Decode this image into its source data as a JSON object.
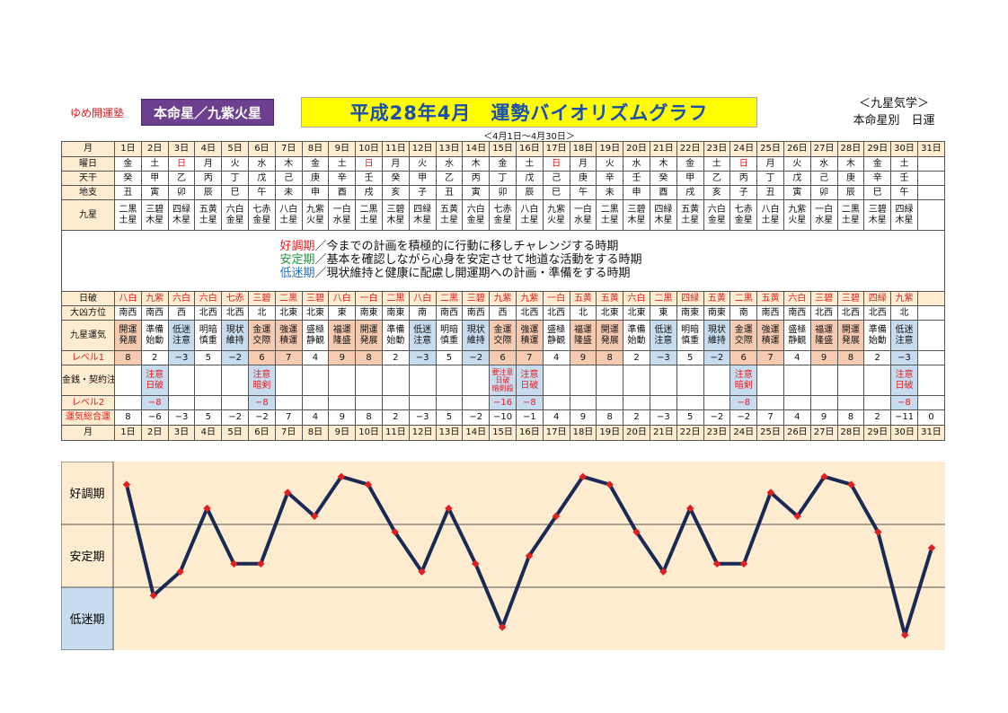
{
  "header": {
    "brand": "ゆめ開運塾",
    "honmei": "本命星／九紫火星",
    "title": "平成28年4月　運勢バイオリズムグラフ",
    "range": "＜4月1日～4月30日＞",
    "kyusei": "＜九星気学＞",
    "honmeibetsu": "本命星別　日運"
  },
  "row_labels": {
    "month": "月",
    "weekday": "曜日",
    "tenkan": "天干",
    "chishi": "地支",
    "kyusei": "九星",
    "nippa": "日破",
    "daikyo": "大凶方位",
    "unki": "九星運気",
    "level1": "レベル1",
    "kinsen": "金銭・契約注意日",
    "level2": "レベル2",
    "sogo": "運気総合運"
  },
  "legend": [
    {
      "key": "好調期",
      "text": "／今までの計画を積極的に行動に移しチャレンジする時期"
    },
    {
      "key": "安定期",
      "text": "／基本を確認しながら心身を安定させて地道な活動をする時期"
    },
    {
      "key": "低迷期",
      "text": "／現状維持と健康に配慮し開運期への計画・準備をする時期"
    }
  ],
  "days": [
    "1日",
    "2日",
    "3日",
    "4日",
    "5日",
    "6日",
    "7日",
    "8日",
    "9日",
    "10日",
    "11日",
    "12日",
    "13日",
    "14日",
    "15日",
    "16日",
    "17日",
    "18日",
    "19日",
    "20日",
    "21日",
    "22日",
    "23日",
    "24日",
    "25日",
    "26日",
    "27日",
    "28日",
    "29日",
    "30日",
    "31日"
  ],
  "weekday": [
    "金",
    "土",
    "日",
    "月",
    "火",
    "水",
    "木",
    "金",
    "土",
    "日",
    "月",
    "火",
    "水",
    "木",
    "金",
    "土",
    "日",
    "月",
    "火",
    "水",
    "木",
    "金",
    "土",
    "日",
    "月",
    "火",
    "水",
    "木",
    "金",
    "土",
    ""
  ],
  "tenkan": [
    "癸",
    "甲",
    "乙",
    "丙",
    "丁",
    "戊",
    "己",
    "庚",
    "辛",
    "壬",
    "癸",
    "甲",
    "乙",
    "丙",
    "丁",
    "戊",
    "己",
    "庚",
    "辛",
    "壬",
    "癸",
    "甲",
    "乙",
    "丙",
    "丁",
    "戊",
    "己",
    "庚",
    "辛",
    "壬",
    ""
  ],
  "chishi": [
    "丑",
    "寅",
    "卯",
    "辰",
    "巳",
    "午",
    "未",
    "申",
    "酉",
    "戌",
    "亥",
    "子",
    "丑",
    "寅",
    "卯",
    "辰",
    "巳",
    "午",
    "未",
    "申",
    "酉",
    "戌",
    "亥",
    "子",
    "丑",
    "寅",
    "卯",
    "辰",
    "巳",
    "午",
    ""
  ],
  "kyusei_top": [
    "二黒",
    "三碧",
    "四緑",
    "五黄",
    "六白",
    "七赤",
    "八白",
    "九紫",
    "一白",
    "二黒",
    "三碧",
    "四緑",
    "五黄",
    "六白",
    "七赤",
    "八白",
    "九紫",
    "一白",
    "二黒",
    "三碧",
    "四緑",
    "五黄",
    "六白",
    "七赤",
    "八白",
    "九紫",
    "一白",
    "二黒",
    "三碧",
    "四緑",
    ""
  ],
  "kyusei_bottom": [
    "土星",
    "木星",
    "木星",
    "土星",
    "金星",
    "金星",
    "土星",
    "火星",
    "水星",
    "土星",
    "木星",
    "木星",
    "土星",
    "金星",
    "金星",
    "土星",
    "火星",
    "水星",
    "土星",
    "木星",
    "木星",
    "土星",
    "金星",
    "金星",
    "土星",
    "火星",
    "水星",
    "土星",
    "木星",
    "木星",
    ""
  ],
  "nippa": [
    "八白",
    "九紫",
    "六白",
    "六白",
    "七赤",
    "三碧",
    "二黒",
    "三碧",
    "八白",
    "一白",
    "二黒",
    "八白",
    "二黒",
    "三碧",
    "九紫",
    "九紫",
    "一白",
    "五黄",
    "五黄",
    "六白",
    "二黒",
    "四緑",
    "五黄",
    "二黒",
    "五黄",
    "六白",
    "三碧",
    "三碧",
    "四緑",
    "九紫",
    ""
  ],
  "daikyo": [
    "南西",
    "南西",
    "西",
    "北西",
    "北西",
    "北",
    "北東",
    "北東",
    "東",
    "南東",
    "南東",
    "南",
    "南西",
    "南西",
    "西",
    "北西",
    "北西",
    "北",
    "北東",
    "北東",
    "東",
    "南東",
    "南東",
    "南",
    "南西",
    "南西",
    "北西",
    "北西",
    "北西",
    "北",
    ""
  ],
  "unki_top": [
    "開運",
    "準備",
    "低迷",
    "明暗",
    "現状",
    "金運",
    "強運",
    "盛極",
    "福運",
    "開運",
    "準備",
    "低迷",
    "明暗",
    "現状",
    "金運",
    "強運",
    "盛極",
    "福運",
    "開運",
    "準備",
    "低迷",
    "明暗",
    "現状",
    "金運",
    "強運",
    "盛極",
    "福運",
    "開運",
    "準備",
    "低迷",
    ""
  ],
  "unki_bottom": [
    "発展",
    "始動",
    "注意",
    "慎重",
    "維持",
    "交際",
    "積運",
    "静観",
    "隆盛",
    "発展",
    "始動",
    "注意",
    "慎重",
    "維持",
    "交際",
    "積運",
    "静観",
    "隆盛",
    "発展",
    "始動",
    "注意",
    "慎重",
    "維持",
    "交際",
    "積運",
    "静観",
    "隆盛",
    "発展",
    "始動",
    "注意",
    ""
  ],
  "unki_class": [
    "good",
    "",
    "bad",
    "",
    "bad",
    "good",
    "good",
    "",
    "good",
    "good",
    "",
    "bad",
    "",
    "bad",
    "good",
    "good",
    "",
    "good",
    "good",
    "",
    "bad",
    "",
    "bad",
    "good",
    "good",
    "",
    "good",
    "good",
    "",
    "bad",
    ""
  ],
  "level1": [
    "8",
    "2",
    "−3",
    "5",
    "−2",
    "6",
    "7",
    "4",
    "9",
    "8",
    "2",
    "−3",
    "5",
    "−2",
    "6",
    "7",
    "4",
    "9",
    "8",
    "2",
    "−3",
    "5",
    "−2",
    "6",
    "7",
    "4",
    "9",
    "8",
    "2",
    "−3",
    ""
  ],
  "kinsen": [
    [],
    [
      "注意",
      "日破"
    ],
    [],
    [],
    [],
    [
      "注意",
      "暗剣"
    ],
    [],
    [],
    [],
    [],
    [],
    [],
    [],
    [],
    [
      "要注意",
      "日破",
      "暗剣殺"
    ],
    [
      "注意",
      "日破"
    ],
    [],
    [],
    [],
    [],
    [],
    [],
    [],
    [
      "注意",
      "暗剣"
    ],
    [],
    [],
    [],
    [],
    [],
    [
      "注意",
      "日破"
    ],
    []
  ],
  "level2": [
    "",
    "−8",
    "",
    "",
    "",
    "−8",
    "",
    "",
    "",
    "",
    "",
    "",
    "",
    "",
    "−16",
    "−8",
    "",
    "",
    "",
    "",
    "",
    "",
    "",
    "−8",
    "",
    "",
    "",
    "",
    "",
    "−8",
    ""
  ],
  "sogo": [
    "8",
    "−6",
    "−3",
    "5",
    "−2",
    "−2",
    "7",
    "4",
    "9",
    "8",
    "2",
    "−3",
    "5",
    "−2",
    "−10",
    "−1",
    "4",
    "9",
    "8",
    "2",
    "−3",
    "5",
    "−2",
    "−2",
    "7",
    "4",
    "9",
    "8",
    "2",
    "−11",
    "0"
  ],
  "zones": [
    "好調期",
    "安定期",
    "低迷期"
  ],
  "colors": {
    "line": "#1a2a55",
    "marker": "#e02020",
    "zone_bg": "#fdeccf"
  },
  "chart_data": {
    "type": "line",
    "categories": [
      "1日",
      "2日",
      "3日",
      "4日",
      "5日",
      "6日",
      "7日",
      "8日",
      "9日",
      "10日",
      "11日",
      "12日",
      "13日",
      "14日",
      "15日",
      "16日",
      "17日",
      "18日",
      "19日",
      "20日",
      "21日",
      "22日",
      "23日",
      "24日",
      "25日",
      "26日",
      "27日",
      "28日",
      "29日",
      "30日",
      "31日"
    ],
    "values": [
      8,
      -6,
      -3,
      5,
      -2,
      -2,
      7,
      4,
      9,
      8,
      2,
      -3,
      5,
      -2,
      -10,
      -1,
      4,
      9,
      8,
      2,
      -3,
      5,
      -2,
      -2,
      7,
      4,
      9,
      8,
      2,
      -11,
      0
    ],
    "ylim": [
      -12,
      10
    ],
    "bands": [
      "好調期",
      "安定期",
      "低迷期"
    ],
    "grid": true
  }
}
